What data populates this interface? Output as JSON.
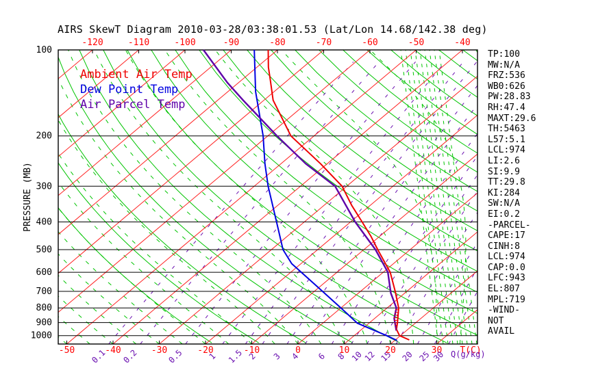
{
  "title": "AIRS SkewT Diagram 2010-03-28/03:38:01.53 (Lat/Lon 14.68/142.38 deg)",
  "colors": {
    "ambient": "#ee0000",
    "dewpoint": "#0000e0",
    "parcel": "#5e00a8",
    "isotherm": "#ff2222",
    "adiabat": "#00c400",
    "mixing": "#6a10b0",
    "axis_text_red": "#ff0000",
    "black": "#000000"
  },
  "legend": [
    {
      "label": "Ambient Air Temp",
      "color_key": "ambient"
    },
    {
      "label": "Dew Point Temp",
      "color_key": "dewpoint"
    },
    {
      "label": "Air Parcel Temp",
      "color_key": "parcel"
    }
  ],
  "y_axis": {
    "label": "PRESSURE (MB)"
  },
  "bottom_axis": {
    "temp_unit_label": "T(C)",
    "mixing_unit_label": "Q(g/kg)"
  },
  "stats_panel": [
    "TP:100",
    "MW:N/A",
    "FRZ:536",
    "WB0:626",
    "PW:28.83",
    "RH:47.4",
    "MAXT:29.6",
    "TH:5463",
    "L57:5.1",
    "LCL:974",
    "LI:2.6",
    "SI:9.9",
    "TT:29.8",
    "KI:284",
    "SW:N/A",
    "EI:0.2",
    "-PARCEL-",
    "CAPE:17",
    "CINH:8",
    "LCL:974",
    "CAP:0.0",
    "LFC:943",
    "EL:807",
    "MPL:719",
    "-WIND-",
    "NOT",
    "AVAIL"
  ],
  "chart_data": {
    "type": "line",
    "title": "AIRS SkewT Diagram 2010-03-28/03:38:01.53 (Lat/Lon 14.68/142.38 deg)",
    "xlabel": "T(C)",
    "ylabel": "PRESSURE (MB)",
    "grid": true,
    "legend_position": "top-left-inside",
    "pressure_axis_range_mb": [
      100,
      1070
    ],
    "pressure_ticks_mb": [
      100,
      200,
      300,
      400,
      500,
      600,
      700,
      800,
      900,
      1000
    ],
    "top_temp_ticks_c": [
      -120,
      -110,
      -100,
      -90,
      -80,
      -70,
      -60,
      -50,
      -40
    ],
    "bottom_temp_ticks_c": [
      -50,
      -40,
      -30,
      -20,
      -10,
      0,
      10,
      20,
      30
    ],
    "mixing_ratio_ticks_gkg": [
      0.1,
      0.2,
      0.5,
      1,
      1.5,
      2,
      3,
      4,
      6,
      8,
      10,
      12,
      15,
      20,
      25,
      30
    ],
    "isotherms_c": {
      "min": -160,
      "max": 40,
      "step": 10
    },
    "dry_adiabats_k": {
      "min": 250,
      "max": 470,
      "step": 10
    },
    "moist_adiabats_start_c": {
      "min": -55,
      "max": 45,
      "step": 5
    },
    "series": [
      {
        "name": "Ambient Air Temp",
        "color_key": "ambient",
        "points_p_t": [
          [
            100,
            -82
          ],
          [
            115,
            -77.5
          ],
          [
            125,
            -74.5
          ],
          [
            150,
            -68
          ],
          [
            200,
            -55
          ],
          [
            250,
            -41.5
          ],
          [
            300,
            -31
          ],
          [
            350,
            -24
          ],
          [
            400,
            -17.5
          ],
          [
            450,
            -11.8
          ],
          [
            500,
            -7
          ],
          [
            600,
            1.5
          ],
          [
            700,
            7.5
          ],
          [
            800,
            12.5
          ],
          [
            900,
            16
          ],
          [
            950,
            17.5
          ],
          [
            1000,
            19.8
          ],
          [
            1035,
            23
          ]
        ]
      },
      {
        "name": "Dew Point Temp",
        "color_key": "dewpoint",
        "points_p_t": [
          [
            100,
            -85
          ],
          [
            140,
            -74
          ],
          [
            200,
            -61
          ],
          [
            250,
            -53.5
          ],
          [
            300,
            -47
          ],
          [
            400,
            -36
          ],
          [
            500,
            -27.5
          ],
          [
            560,
            -22
          ],
          [
            680,
            -10
          ],
          [
            800,
            0
          ],
          [
            905,
            7.5
          ],
          [
            1000,
            17
          ],
          [
            1040,
            20.5
          ]
        ]
      },
      {
        "name": "Air Parcel Temp",
        "color_key": "parcel",
        "points_p_t": [
          [
            100,
            -96
          ],
          [
            130,
            -82.5
          ],
          [
            150,
            -74.5
          ],
          [
            200,
            -58
          ],
          [
            250,
            -44.7
          ],
          [
            300,
            -32.5
          ],
          [
            400,
            -19
          ],
          [
            500,
            -7.5
          ],
          [
            600,
            1
          ],
          [
            710,
            7
          ],
          [
            800,
            12
          ],
          [
            870,
            14.2
          ],
          [
            960,
            17.8
          ]
        ]
      }
    ],
    "cin_hatch_pressures_mb": [
      812,
      830,
      848,
      866,
      884,
      902,
      920,
      938,
      952
    ],
    "dense_band": {
      "x_start": 640,
      "x_end": 696,
      "step": 7,
      "lean_dx": -55
    }
  }
}
